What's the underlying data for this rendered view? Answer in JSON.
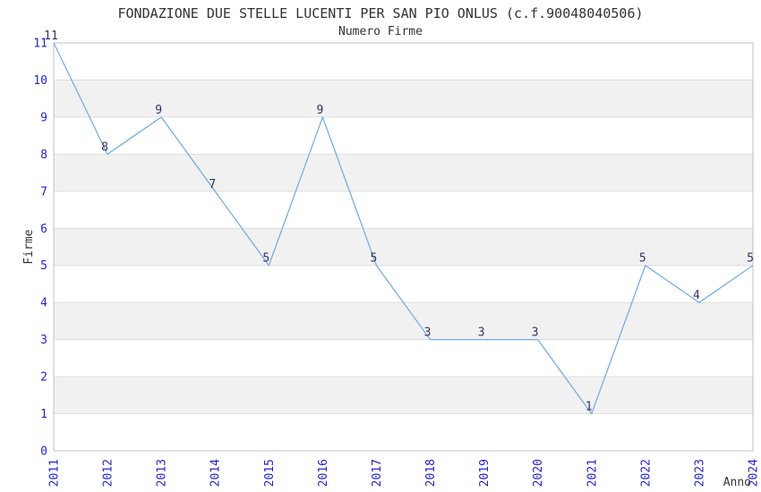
{
  "chart_data": {
    "type": "line",
    "title": "FONDAZIONE DUE STELLE LUCENTI PER SAN PIO ONLUS (c.f.90048040506)",
    "subtitle": "Numero Firme",
    "xlabel": "Anno",
    "ylabel": "Firme",
    "x": [
      "2011",
      "2012",
      "2013",
      "2014",
      "2015",
      "2016",
      "2017",
      "2018",
      "2019",
      "2020",
      "2021",
      "2022",
      "2023",
      "2024"
    ],
    "values": [
      11,
      8,
      9,
      7,
      5,
      9,
      5,
      3,
      3,
      3,
      1,
      5,
      4,
      5
    ],
    "ylim": [
      0,
      11
    ],
    "yticks": [
      0,
      1,
      2,
      3,
      4,
      5,
      6,
      7,
      8,
      9,
      10,
      11
    ],
    "show_point_labels": true,
    "grid": true,
    "legend": "none",
    "colors": {
      "line": "#79ade2",
      "tick_labels": "#2424cc",
      "point_labels": "#333366",
      "band_fill": "#f1f1f1",
      "grid_line": "#dedede",
      "plot_border": "#c0c0c0",
      "text": "#333333",
      "background": "#ffffff"
    }
  }
}
